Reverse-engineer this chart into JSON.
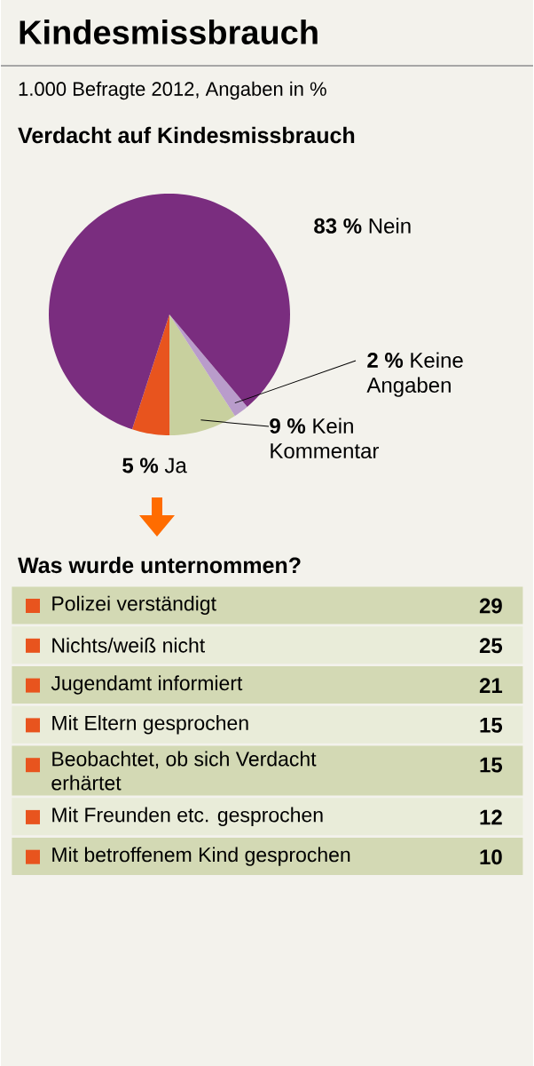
{
  "chart_data": [
    {
      "type": "pie",
      "title": "Kindesmissbrauch",
      "subtitle": "1.000 Befragte 2012, Angaben in %",
      "annotations": [
        "Verdacht auf Kindesmissbrauch"
      ],
      "categories": [
        "Ja",
        "Kein Kommentar",
        "Keine Angaben",
        "Nein"
      ],
      "values": [
        5,
        9,
        2,
        83
      ],
      "value_labels": [
        "5 %",
        "9 %",
        "2 %",
        "83 %"
      ],
      "colors": [
        "#e8541e",
        "#c8d09e",
        "#b99ccb",
        "#7a2d7f"
      ]
    },
    {
      "type": "other",
      "title": "Was wurde unternommen?",
      "colors": [
        "#d3d9b4",
        "#e9ecd9",
        "#d3d9b4",
        "#e9ecd9",
        "#d3d9b4",
        "#e9ecd9",
        "#d3d9b4"
      ],
      "categories": [
        "Polizei verständigt",
        "Nichts/weiß nicht",
        "Jugendamt informiert",
        "Mit Eltern gesprochen",
        "Beobachtet, ob sich Verdacht erhärtet",
        "Mit Freunden etc. gesprochen",
        "Mit betroffenem Kind gesprochen"
      ],
      "values": [
        29,
        25,
        21,
        15,
        15,
        12,
        10
      ],
      "value_labels": [
        "29",
        "25",
        "21",
        "15",
        "15",
        "12",
        "10"
      ]
    }
  ]
}
